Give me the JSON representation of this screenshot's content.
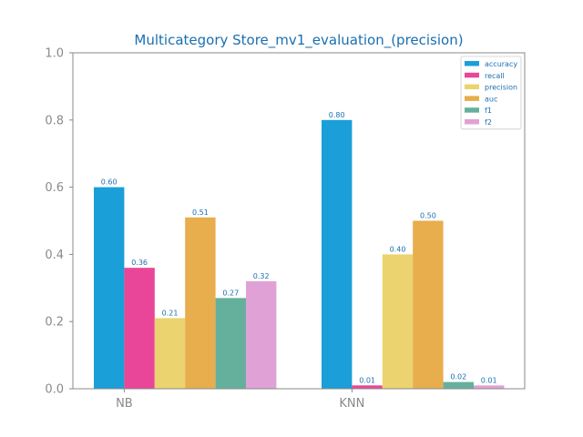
{
  "chart_data": {
    "type": "bar",
    "title": "Multicategory Store_mv1_evaluation_(precision)",
    "xlabel": "",
    "ylabel": "",
    "categories": [
      "NB",
      "KNN"
    ],
    "ylim": [
      0,
      1.0
    ],
    "yticks": [
      0.0,
      0.2,
      0.4,
      0.6,
      0.8,
      1.0
    ],
    "ytick_labels": [
      "0.0",
      "0.2",
      "0.4",
      "0.6",
      "0.8",
      "1.0"
    ],
    "grid": false,
    "legend_position": "top-right",
    "series": [
      {
        "name": "accuracy",
        "color": "#1a9fd8",
        "values": [
          0.6,
          0.8
        ],
        "labels": [
          "0.60",
          "0.80"
        ]
      },
      {
        "name": "recall",
        "color": "#ea4699",
        "values": [
          0.36,
          0.01
        ],
        "labels": [
          "0.36",
          "0.01"
        ]
      },
      {
        "name": "precision",
        "color": "#ebd36f",
        "values": [
          0.21,
          0.4
        ],
        "labels": [
          "0.21",
          "0.40"
        ]
      },
      {
        "name": "auc",
        "color": "#e8ad4c",
        "values": [
          0.51,
          0.5
        ],
        "labels": [
          "0.51",
          "0.50"
        ]
      },
      {
        "name": "f1",
        "color": "#65b09c",
        "values": [
          0.27,
          0.02
        ],
        "labels": [
          "0.27",
          "0.02"
        ]
      },
      {
        "name": "f2",
        "color": "#e0a2d6",
        "values": [
          0.32,
          0.01
        ],
        "labels": [
          "0.32",
          "0.01"
        ]
      }
    ]
  }
}
